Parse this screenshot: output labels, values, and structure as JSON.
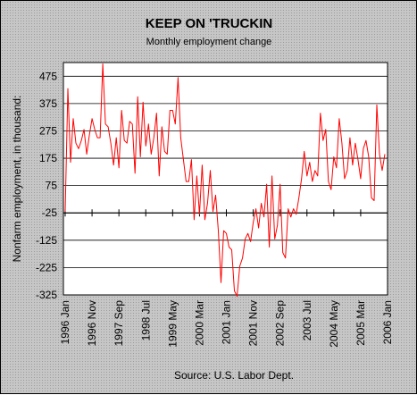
{
  "chart_data": {
    "type": "line",
    "title": "KEEP ON 'TRUCKIN",
    "subtitle": "Monthly employment change",
    "ylabel": "Nonfarm employment, in thousand:",
    "xlabel": "",
    "source": "Source: U.S. Labor Dept.",
    "ylim": [
      -325,
      525
    ],
    "y_ticks": [
      475,
      375,
      275,
      175,
      75,
      -25,
      -125,
      -225,
      -325
    ],
    "y_tick_labels": [
      "475",
      "375",
      "275",
      "175",
      "75",
      "-25",
      "-125",
      "-225",
      "-325"
    ],
    "x_tick_labels": [
      "1996 Jan",
      "1996 Nov",
      "1997 Sep",
      "1998 Jul",
      "1999 May",
      "2000 Mar",
      "2001 Jan",
      "2001 Nov",
      "2002 Sep",
      "2003 Jul",
      "2004 May",
      "2005 Mar",
      "2006 Jan"
    ],
    "x_tick_month_index": [
      0,
      10,
      20,
      30,
      40,
      50,
      60,
      70,
      80,
      90,
      100,
      110,
      120
    ],
    "grid": true,
    "line_color": "#ff0000",
    "series": [
      {
        "values": [
          -20,
          430,
          160,
          320,
          230,
          210,
          240,
          280,
          190,
          260,
          320,
          280,
          250,
          250,
          520,
          300,
          290,
          230,
          150,
          250,
          140,
          350,
          240,
          230,
          310,
          300,
          120,
          400,
          180,
          380,
          220,
          300,
          190,
          250,
          340,
          110,
          290,
          200,
          190,
          350,
          350,
          300,
          470,
          250,
          170,
          90,
          90,
          170,
          -50,
          110,
          -30,
          150,
          -50,
          10,
          130,
          -20,
          40,
          -90,
          -280,
          -90,
          -100,
          -150,
          -160,
          -310,
          -330,
          -220,
          -190,
          -120,
          -100,
          -130,
          -60,
          -10,
          -80,
          10,
          -40,
          80,
          -150,
          110,
          -120,
          -70,
          80,
          -170,
          -190,
          -10,
          -40,
          -10,
          -30,
          30,
          100,
          200,
          110,
          160,
          90,
          130,
          110,
          340,
          240,
          280,
          90,
          60,
          180,
          140,
          320,
          230,
          100,
          130,
          250,
          150,
          230,
          170,
          100,
          210,
          240,
          180,
          30,
          20,
          370,
          190,
          130,
          190
        ]
      }
    ]
  }
}
